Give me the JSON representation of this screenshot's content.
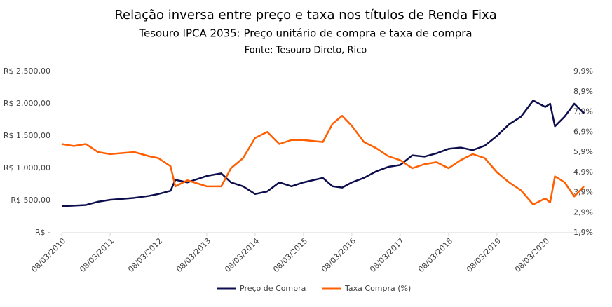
{
  "chart_data": {
    "type": "line",
    "title": "Relação inversa entre preço e taxa nos títulos de Renda Fixa",
    "subtitle": "Tesouro IPCA 2035: Preço unitário de compra e taxa de compra",
    "source": "Fonte: Tesouro Direto, Rico",
    "x": [
      2010,
      2010.25,
      2010.5,
      2010.75,
      2011,
      2011.5,
      2011.8,
      2012,
      2012.25,
      2012.35,
      2012.6,
      2013,
      2013.3,
      2013.5,
      2013.75,
      2014,
      2014.25,
      2014.5,
      2014.75,
      2015,
      2015.4,
      2015.6,
      2015.8,
      2016,
      2016.25,
      2016.5,
      2016.75,
      2017,
      2017.25,
      2017.5,
      2017.75,
      2018,
      2018.25,
      2018.5,
      2018.75,
      2019,
      2019.25,
      2019.5,
      2019.75,
      2020,
      2020.1,
      2020.2,
      2020.4,
      2020.6,
      2020.8
    ],
    "series": [
      {
        "name": "Preço de Compra",
        "color": "#0d0d4d",
        "values": [
          410,
          420,
          430,
          480,
          510,
          540,
          570,
          600,
          650,
          820,
          780,
          880,
          920,
          780,
          720,
          600,
          640,
          780,
          720,
          780,
          850,
          720,
          700,
          780,
          850,
          950,
          1020,
          1050,
          1200,
          1180,
          1230,
          1300,
          1320,
          1280,
          1350,
          1500,
          1680,
          1800,
          2050,
          1950,
          2000,
          1650,
          1800,
          2000,
          1850
        ]
      },
      {
        "name": "Taxa Compra (%)",
        "color": "#ff5f00",
        "axis": "y2",
        "values": [
          6.3,
          6.2,
          6.3,
          5.9,
          5.8,
          5.9,
          5.7,
          5.6,
          5.2,
          4.2,
          4.5,
          4.2,
          4.2,
          5.1,
          5.6,
          6.6,
          6.9,
          6.3,
          6.5,
          6.5,
          6.4,
          7.3,
          7.7,
          7.2,
          6.4,
          6.1,
          5.7,
          5.5,
          5.1,
          5.3,
          5.4,
          5.1,
          5.5,
          5.8,
          5.6,
          4.9,
          4.4,
          4.0,
          3.3,
          3.6,
          3.4,
          4.7,
          4.4,
          3.7,
          4.2
        ]
      }
    ],
    "xlim": [
      2010,
      2020.8
    ],
    "xticks": [
      {
        "value": 2010,
        "label": "08/03/2010"
      },
      {
        "value": 2011,
        "label": "08/03/2011"
      },
      {
        "value": 2012,
        "label": "08/03/2012"
      },
      {
        "value": 2013,
        "label": "08/03/2013"
      },
      {
        "value": 2014,
        "label": "08/03/2014"
      },
      {
        "value": 2015,
        "label": "08/03/2015"
      },
      {
        "value": 2016,
        "label": "08/03/2016"
      },
      {
        "value": 2017,
        "label": "08/03/2017"
      },
      {
        "value": 2018,
        "label": "08/03/2018"
      },
      {
        "value": 2019,
        "label": "08/03/2019"
      },
      {
        "value": 2020,
        "label": "08/03/2020"
      }
    ],
    "ylim": [
      0,
      2500
    ],
    "yticks": [
      {
        "value": 0,
        "label": "R$ -"
      },
      {
        "value": 500,
        "label": "R$ 500,00"
      },
      {
        "value": 1000,
        "label": "R$ 1.000,00"
      },
      {
        "value": 1500,
        "label": "R$ 1.500,00"
      },
      {
        "value": 2000,
        "label": "R$ 2.000,00"
      },
      {
        "value": 2500,
        "label": "R$ 2.500,00"
      }
    ],
    "y2lim": [
      1.9,
      9.9
    ],
    "y2ticks": [
      {
        "value": 1.9,
        "label": "1,9%"
      },
      {
        "value": 2.9,
        "label": "2,9%"
      },
      {
        "value": 3.9,
        "label": "3,9%"
      },
      {
        "value": 4.9,
        "label": "4,9%"
      },
      {
        "value": 5.9,
        "label": "5,9%"
      },
      {
        "value": 6.9,
        "label": "6,9%"
      },
      {
        "value": 7.9,
        "label": "7,9%"
      },
      {
        "value": 8.9,
        "label": "8,9%"
      },
      {
        "value": 9.9,
        "label": "9,9%"
      }
    ],
    "grid": false,
    "legend": "bottom"
  }
}
